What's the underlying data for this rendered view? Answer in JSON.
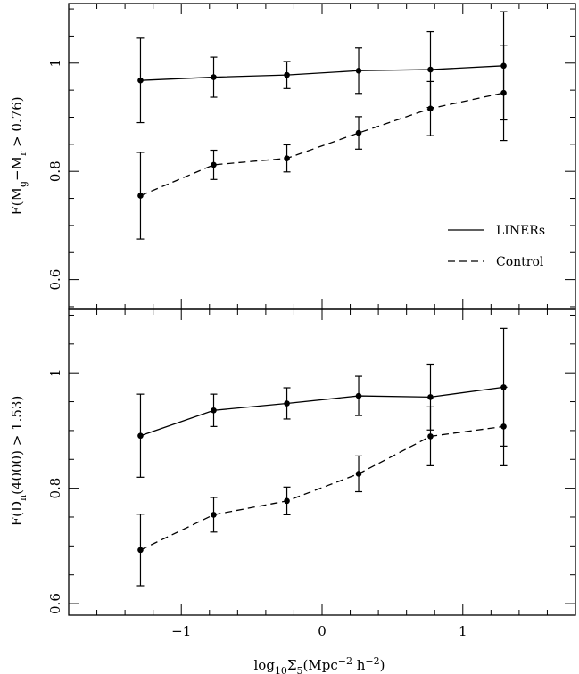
{
  "chart_data": [
    {
      "type": "line",
      "title": "",
      "ylabel_parts": {
        "prefix": "F(M",
        "sub1": "g",
        "mid": "−M",
        "sub2": "r",
        "suffix": " > 0.76)"
      },
      "xlim": [
        -1.8,
        1.8
      ],
      "ylim": [
        0.545,
        1.11
      ],
      "yticks": [
        0.6,
        0.8,
        1.0
      ],
      "ytick_labels": [
        "0.6",
        "0.8",
        "1"
      ],
      "xticks": [
        -1,
        0,
        1
      ],
      "x": [
        -1.29,
        -0.77,
        -0.25,
        0.26,
        0.77,
        1.29
      ],
      "series": [
        {
          "name": "LINERs",
          "style": "solid",
          "values": [
            0.968,
            0.974,
            0.978,
            0.986,
            0.988,
            0.995
          ],
          "err": [
            0.078,
            0.037,
            0.025,
            0.042,
            0.07,
            0.1
          ]
        },
        {
          "name": "Control",
          "style": "dashed",
          "values": [
            0.755,
            0.812,
            0.824,
            0.871,
            0.916,
            0.945
          ],
          "err": [
            0.08,
            0.027,
            0.025,
            0.03,
            0.05,
            0.088
          ]
        }
      ],
      "legend": {
        "placement": "right",
        "entries": [
          "LINERs",
          "Control"
        ]
      }
    },
    {
      "type": "line",
      "title": "",
      "ylabel_parts": {
        "prefix": "F(D",
        "sub1": "n",
        "suffix": "(4000) > 1.53)"
      },
      "xlabel_parts": {
        "prefix": "log",
        "sub1": "10",
        "sigma": "Σ",
        "sub2": "5",
        "mid": "(Mpc",
        "sup1": "−2",
        "mid2": " h",
        "sup2": "−2",
        "suffix": ")"
      },
      "xlim": [
        -1.8,
        1.8
      ],
      "ylim": [
        0.58,
        1.11
      ],
      "yticks": [
        0.6,
        0.8,
        1.0
      ],
      "ytick_labels": [
        "0.6",
        "0.8",
        "1"
      ],
      "xticks": [
        -1,
        0,
        1
      ],
      "xtick_labels": [
        "−1",
        "0",
        "1"
      ],
      "x": [
        -1.29,
        -0.77,
        -0.25,
        0.26,
        0.77,
        1.29
      ],
      "series": [
        {
          "name": "LINERs",
          "style": "solid",
          "values": [
            0.891,
            0.935,
            0.947,
            0.96,
            0.958,
            0.975
          ],
          "err": [
            0.072,
            0.028,
            0.027,
            0.034,
            0.057,
            0.102
          ]
        },
        {
          "name": "Control",
          "style": "dashed",
          "values": [
            0.693,
            0.754,
            0.778,
            0.825,
            0.89,
            0.907
          ],
          "err": [
            0.062,
            0.03,
            0.024,
            0.031,
            0.051,
            0.068
          ]
        }
      ]
    }
  ]
}
